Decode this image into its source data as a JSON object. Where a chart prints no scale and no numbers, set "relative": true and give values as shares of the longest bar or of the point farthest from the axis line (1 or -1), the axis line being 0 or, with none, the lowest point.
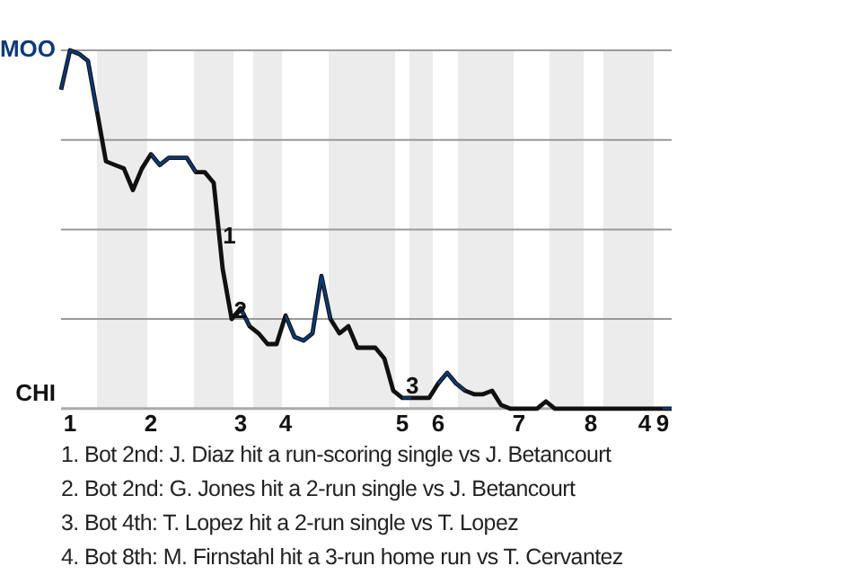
{
  "chart_data": {
    "type": "line",
    "relative": true,
    "categories": [
      null,
      "1",
      null,
      null,
      null,
      null,
      null,
      null,
      null,
      null,
      "2",
      null,
      null,
      null,
      null,
      null,
      null,
      null,
      null,
      null,
      "3",
      null,
      null,
      null,
      null,
      "4",
      null,
      null,
      null,
      null,
      null,
      null,
      null,
      null,
      null,
      null,
      null,
      null,
      "5",
      null,
      null,
      null,
      "6",
      null,
      null,
      null,
      null,
      null,
      null,
      null,
      null,
      "7",
      null,
      null,
      null,
      null,
      null,
      null,
      null,
      "8",
      null,
      null,
      null,
      null,
      null,
      "4",
      null,
      "9",
      null
    ],
    "series": [
      {
        "color": "#111111",
        "values": [
          0.89,
          1,
          0.99,
          0.97,
          0.83,
          0.69,
          0.68,
          0.67,
          0.61,
          0.67,
          0.71,
          0.68,
          0.7,
          0.7,
          0.7,
          0.66,
          0.66,
          0.63,
          0.39,
          0.25,
          0.28,
          0.23,
          0.21,
          0.18,
          0.18,
          0.26,
          0.2,
          0.19,
          0.21,
          0.37,
          0.25,
          0.21,
          0.23,
          0.17,
          0.17,
          0.17,
          0.14,
          0.05,
          0.03,
          0.03,
          0.03,
          0.03,
          0.07,
          0.1,
          0.07,
          0.05,
          0.04,
          0.04,
          0.05,
          0.01,
          0,
          0,
          0,
          0,
          0.02,
          0,
          0,
          0,
          0,
          0,
          0,
          0,
          0,
          0,
          0,
          0,
          0,
          0,
          0
        ]
      },
      {
        "color": "#0b3a7a",
        "values": [
          0.89,
          1,
          0.99,
          0.97,
          0.83,
          null,
          null,
          null,
          null,
          null,
          0.71,
          0.68,
          0.7,
          0.7,
          0.7,
          0.66,
          null,
          null,
          null,
          null,
          0.28,
          0.23,
          null,
          null,
          null,
          0.26,
          0.2,
          0.19,
          0.21,
          0.37,
          0.25,
          null,
          null,
          null,
          null,
          null,
          null,
          null,
          0.03,
          0.03,
          null,
          null,
          0.07,
          0.1,
          0.07,
          0.05,
          null,
          null,
          null,
          null,
          null,
          null,
          null,
          null,
          null,
          null,
          null,
          null,
          null,
          null,
          null,
          null,
          null,
          null,
          null,
          null,
          null,
          0,
          0
        ]
      }
    ],
    "grid": "y",
    "marker": "none",
    "annotations": [
      "MOO",
      "CHI",
      {
        "text": "1",
        "y": 0.48
      },
      {
        "text": "2",
        "y": 0.27
      },
      {
        "text": "3",
        "y": 0.03
      },
      "1. Bot 2nd: J. Diaz hit a run-scoring single vs J. Betancourt",
      "2. Bot 2nd: G. Jones hit a 2-run single vs J. Betancourt",
      "3. Bot 4th: T. Lopez hit a 2-run single vs T. Lopez",
      "4. Bot 8th: M. Firnstahl hit a 3-run home run vs T. Cervantez"
    ]
  }
}
